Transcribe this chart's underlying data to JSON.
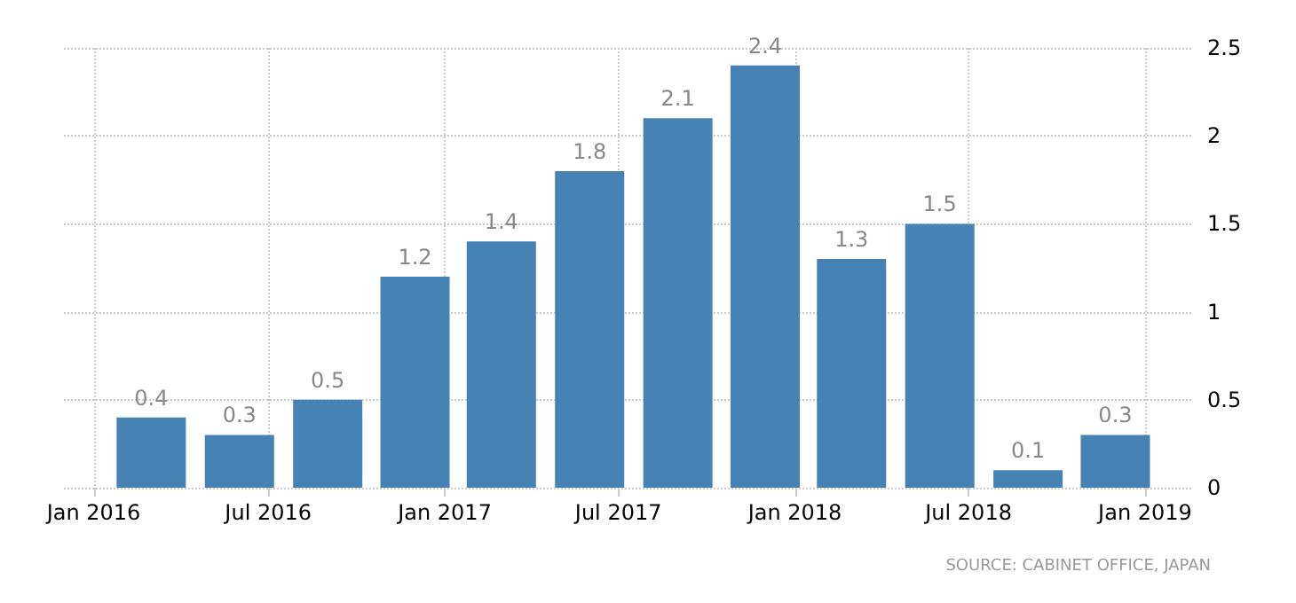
{
  "chart_data": {
    "type": "bar",
    "x": [
      "2016-03",
      "2016-06",
      "2016-09",
      "2016-12",
      "2017-03",
      "2017-06",
      "2017-09",
      "2017-12",
      "2018-03",
      "2018-06",
      "2018-09",
      "2018-12"
    ],
    "values": [
      0.4,
      0.3,
      0.5,
      1.2,
      1.4,
      1.8,
      2.1,
      2.4,
      1.3,
      1.5,
      0.1,
      0.3
    ],
    "color": "#4682b4",
    "data_labels": true,
    "xlim": [
      "2015-12-01",
      "2019-02-20"
    ],
    "xticks": [
      {
        "value": "2016-01",
        "label": "Jan 2016"
      },
      {
        "value": "2016-07",
        "label": "Jul 2016"
      },
      {
        "value": "2017-01",
        "label": "Jan 2017"
      },
      {
        "value": "2017-07",
        "label": "Jul 2017"
      },
      {
        "value": "2018-01",
        "label": "Jan 2018"
      },
      {
        "value": "2018-07",
        "label": "Jul 2018"
      },
      {
        "value": "2019-01",
        "label": "Jan 2019"
      }
    ],
    "ylim": [
      0,
      2.5
    ],
    "yticks": [
      0,
      0.5,
      1,
      1.5,
      2,
      2.5
    ],
    "grid": true,
    "annotations": [
      "SOURCE: CABINET OFFICE, JAPAN"
    ]
  }
}
